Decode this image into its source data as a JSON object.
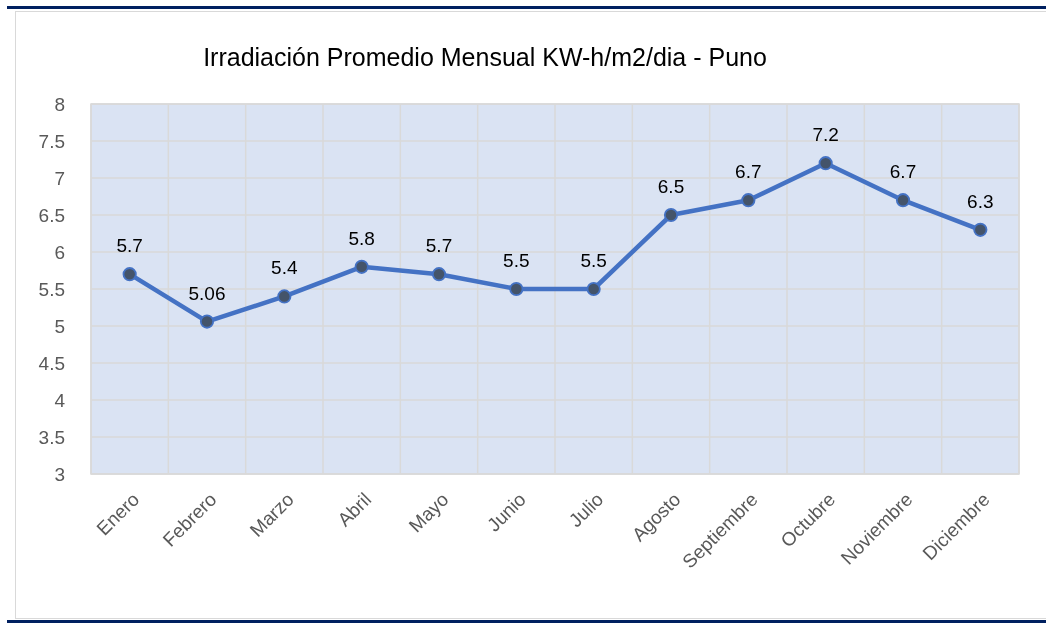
{
  "chart_data": {
    "type": "line",
    "title": "Irradiación Promedio Mensual KW-h/m2/dia - Puno",
    "categories": [
      "Enero",
      "Febrero",
      "Marzo",
      "Abril",
      "Mayo",
      "Junio",
      "Julio",
      "Agosto",
      "Septiembre",
      "Octubre",
      "Noviembre",
      "Diciembre"
    ],
    "series": [
      {
        "color": "#4472c4",
        "values": [
          5.7,
          5.06,
          5.4,
          5.8,
          5.7,
          5.5,
          5.5,
          6.5,
          6.7,
          7.2,
          6.7,
          6.3
        ]
      }
    ],
    "ylim": [
      3,
      8
    ],
    "yticks": [
      3,
      3.5,
      4,
      4.5,
      5,
      5.5,
      6,
      6.5,
      7,
      7.5,
      8
    ],
    "grid": true,
    "marker": "circle",
    "data_labels": true
  }
}
